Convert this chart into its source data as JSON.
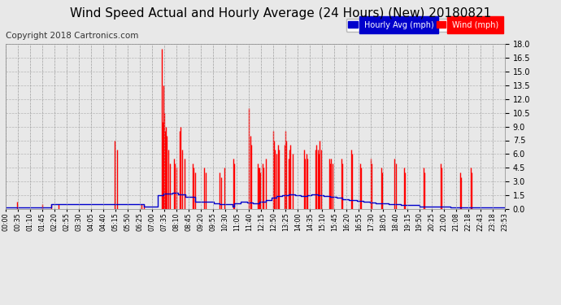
{
  "title": "Wind Speed Actual and Hourly Average (24 Hours) (New) 20180821",
  "copyright": "Copyright 2018 Cartronics.com",
  "ylim": [
    0.0,
    18.0
  ],
  "yticks": [
    0.0,
    1.5,
    3.0,
    4.5,
    6.0,
    7.5,
    9.0,
    10.5,
    12.0,
    13.5,
    15.0,
    16.5,
    18.0
  ],
  "bg_color": "#e8e8e8",
  "plot_bg": "#e8e8e8",
  "wind_color": "#ff0000",
  "avg_color": "#0000cc",
  "grid_color": "#aaaaaa",
  "title_fontsize": 11,
  "copyright_fontsize": 7.5,
  "tick_labels": [
    "00:00",
    "00:35",
    "01:10",
    "01:45",
    "02:20",
    "02:55",
    "03:30",
    "04:05",
    "04:40",
    "05:15",
    "05:50",
    "06:25",
    "07:00",
    "07:35",
    "08:10",
    "08:45",
    "09:20",
    "09:55",
    "10:30",
    "11:05",
    "11:40",
    "12:15",
    "12:50",
    "13:25",
    "14:00",
    "14:35",
    "15:10",
    "15:45",
    "16:20",
    "16:55",
    "17:30",
    "18:05",
    "18:40",
    "19:15",
    "19:50",
    "20:25",
    "21:00",
    "21:08",
    "22:18",
    "22:43",
    "23:18",
    "23:53"
  ],
  "legend_avg_label": "Hourly Avg (mph)",
  "legend_wind_label": "Wind (mph)",
  "wind_x": [
    0.55,
    1.75,
    2.2,
    2.55,
    5.25,
    5.35,
    6.55,
    6.65,
    7.5,
    7.55,
    7.6,
    7.63,
    7.66,
    7.7,
    7.75,
    7.82,
    7.88,
    8.1,
    8.15,
    8.2,
    8.35,
    8.4,
    8.5,
    8.6,
    9.0,
    9.05,
    9.1,
    9.55,
    9.6,
    10.3,
    10.35,
    10.5,
    10.95,
    11.0,
    11.7,
    11.75,
    11.8,
    12.1,
    12.15,
    12.2,
    12.25,
    12.35,
    12.4,
    12.5,
    12.85,
    12.9,
    12.95,
    13.0,
    13.1,
    13.15,
    13.4,
    13.45,
    13.5,
    13.6,
    13.65,
    13.7,
    13.8,
    14.35,
    14.4,
    14.45,
    14.5,
    14.9,
    14.95,
    15.0,
    15.05,
    15.1,
    15.15,
    15.55,
    15.6,
    15.65,
    15.7,
    16.15,
    16.2,
    16.6,
    16.65,
    17.05,
    17.1,
    17.55,
    17.6,
    18.05,
    18.1,
    18.7,
    18.75,
    19.15,
    19.2,
    20.1,
    20.15,
    20.9,
    20.95,
    21.85,
    21.9,
    22.35,
    22.4
  ],
  "wind_y": [
    0.8,
    0.5,
    0.5,
    0.5,
    7.5,
    6.5,
    0.5,
    0.5,
    17.5,
    9.5,
    13.5,
    10.5,
    8.5,
    9.0,
    8.0,
    6.5,
    5.0,
    5.5,
    5.0,
    4.5,
    8.5,
    9.0,
    6.5,
    5.5,
    5.0,
    4.5,
    4.0,
    4.5,
    4.0,
    4.0,
    3.5,
    4.5,
    5.5,
    5.0,
    11.0,
    8.0,
    7.0,
    5.0,
    4.5,
    4.5,
    4.0,
    5.0,
    4.5,
    5.5,
    8.5,
    7.5,
    6.5,
    6.0,
    7.0,
    6.5,
    7.0,
    8.5,
    7.5,
    5.5,
    6.5,
    7.0,
    6.0,
    6.5,
    5.5,
    6.0,
    5.5,
    6.5,
    7.0,
    6.5,
    6.0,
    7.5,
    6.5,
    5.5,
    5.0,
    5.5,
    5.0,
    5.5,
    5.0,
    6.5,
    6.0,
    5.0,
    4.5,
    5.5,
    5.0,
    4.5,
    4.0,
    5.5,
    5.0,
    4.5,
    4.0,
    4.5,
    4.0,
    5.0,
    4.5,
    4.0,
    3.5,
    4.5,
    4.0
  ],
  "avg_t": [
    0,
    2.0,
    2.2,
    4.5,
    6.45,
    6.65,
    7.3,
    7.6,
    8.0,
    8.3,
    8.65,
    9.1,
    10.0,
    10.3,
    10.9,
    11.0,
    11.3,
    11.6,
    11.9,
    12.2,
    12.5,
    12.8,
    13.0,
    13.3,
    13.6,
    13.9,
    14.2,
    14.5,
    14.7,
    15.0,
    15.3,
    15.6,
    15.9,
    16.2,
    16.5,
    16.7,
    16.9,
    17.2,
    17.5,
    17.8,
    18.1,
    18.4,
    18.7,
    19.0,
    19.3,
    19.6,
    19.9,
    20.2,
    20.5,
    20.8,
    21.1,
    21.4,
    21.7,
    22.0,
    22.3,
    22.6,
    22.9,
    23.2,
    23.5,
    24.0
  ],
  "avg_v": [
    0.2,
    0.2,
    0.5,
    0.5,
    0.5,
    0.3,
    1.5,
    1.7,
    1.8,
    1.6,
    1.3,
    0.8,
    0.6,
    0.5,
    0.3,
    0.6,
    0.8,
    0.7,
    0.6,
    0.8,
    1.0,
    1.2,
    1.4,
    1.5,
    1.6,
    1.5,
    1.4,
    1.5,
    1.6,
    1.5,
    1.4,
    1.3,
    1.2,
    1.1,
    1.0,
    1.0,
    0.9,
    0.8,
    0.7,
    0.6,
    0.6,
    0.5,
    0.5,
    0.4,
    0.4,
    0.4,
    0.3,
    0.3,
    0.3,
    0.3,
    0.3,
    0.2,
    0.2,
    0.2,
    0.2,
    0.2,
    0.2,
    0.2,
    0.2,
    0.2
  ]
}
